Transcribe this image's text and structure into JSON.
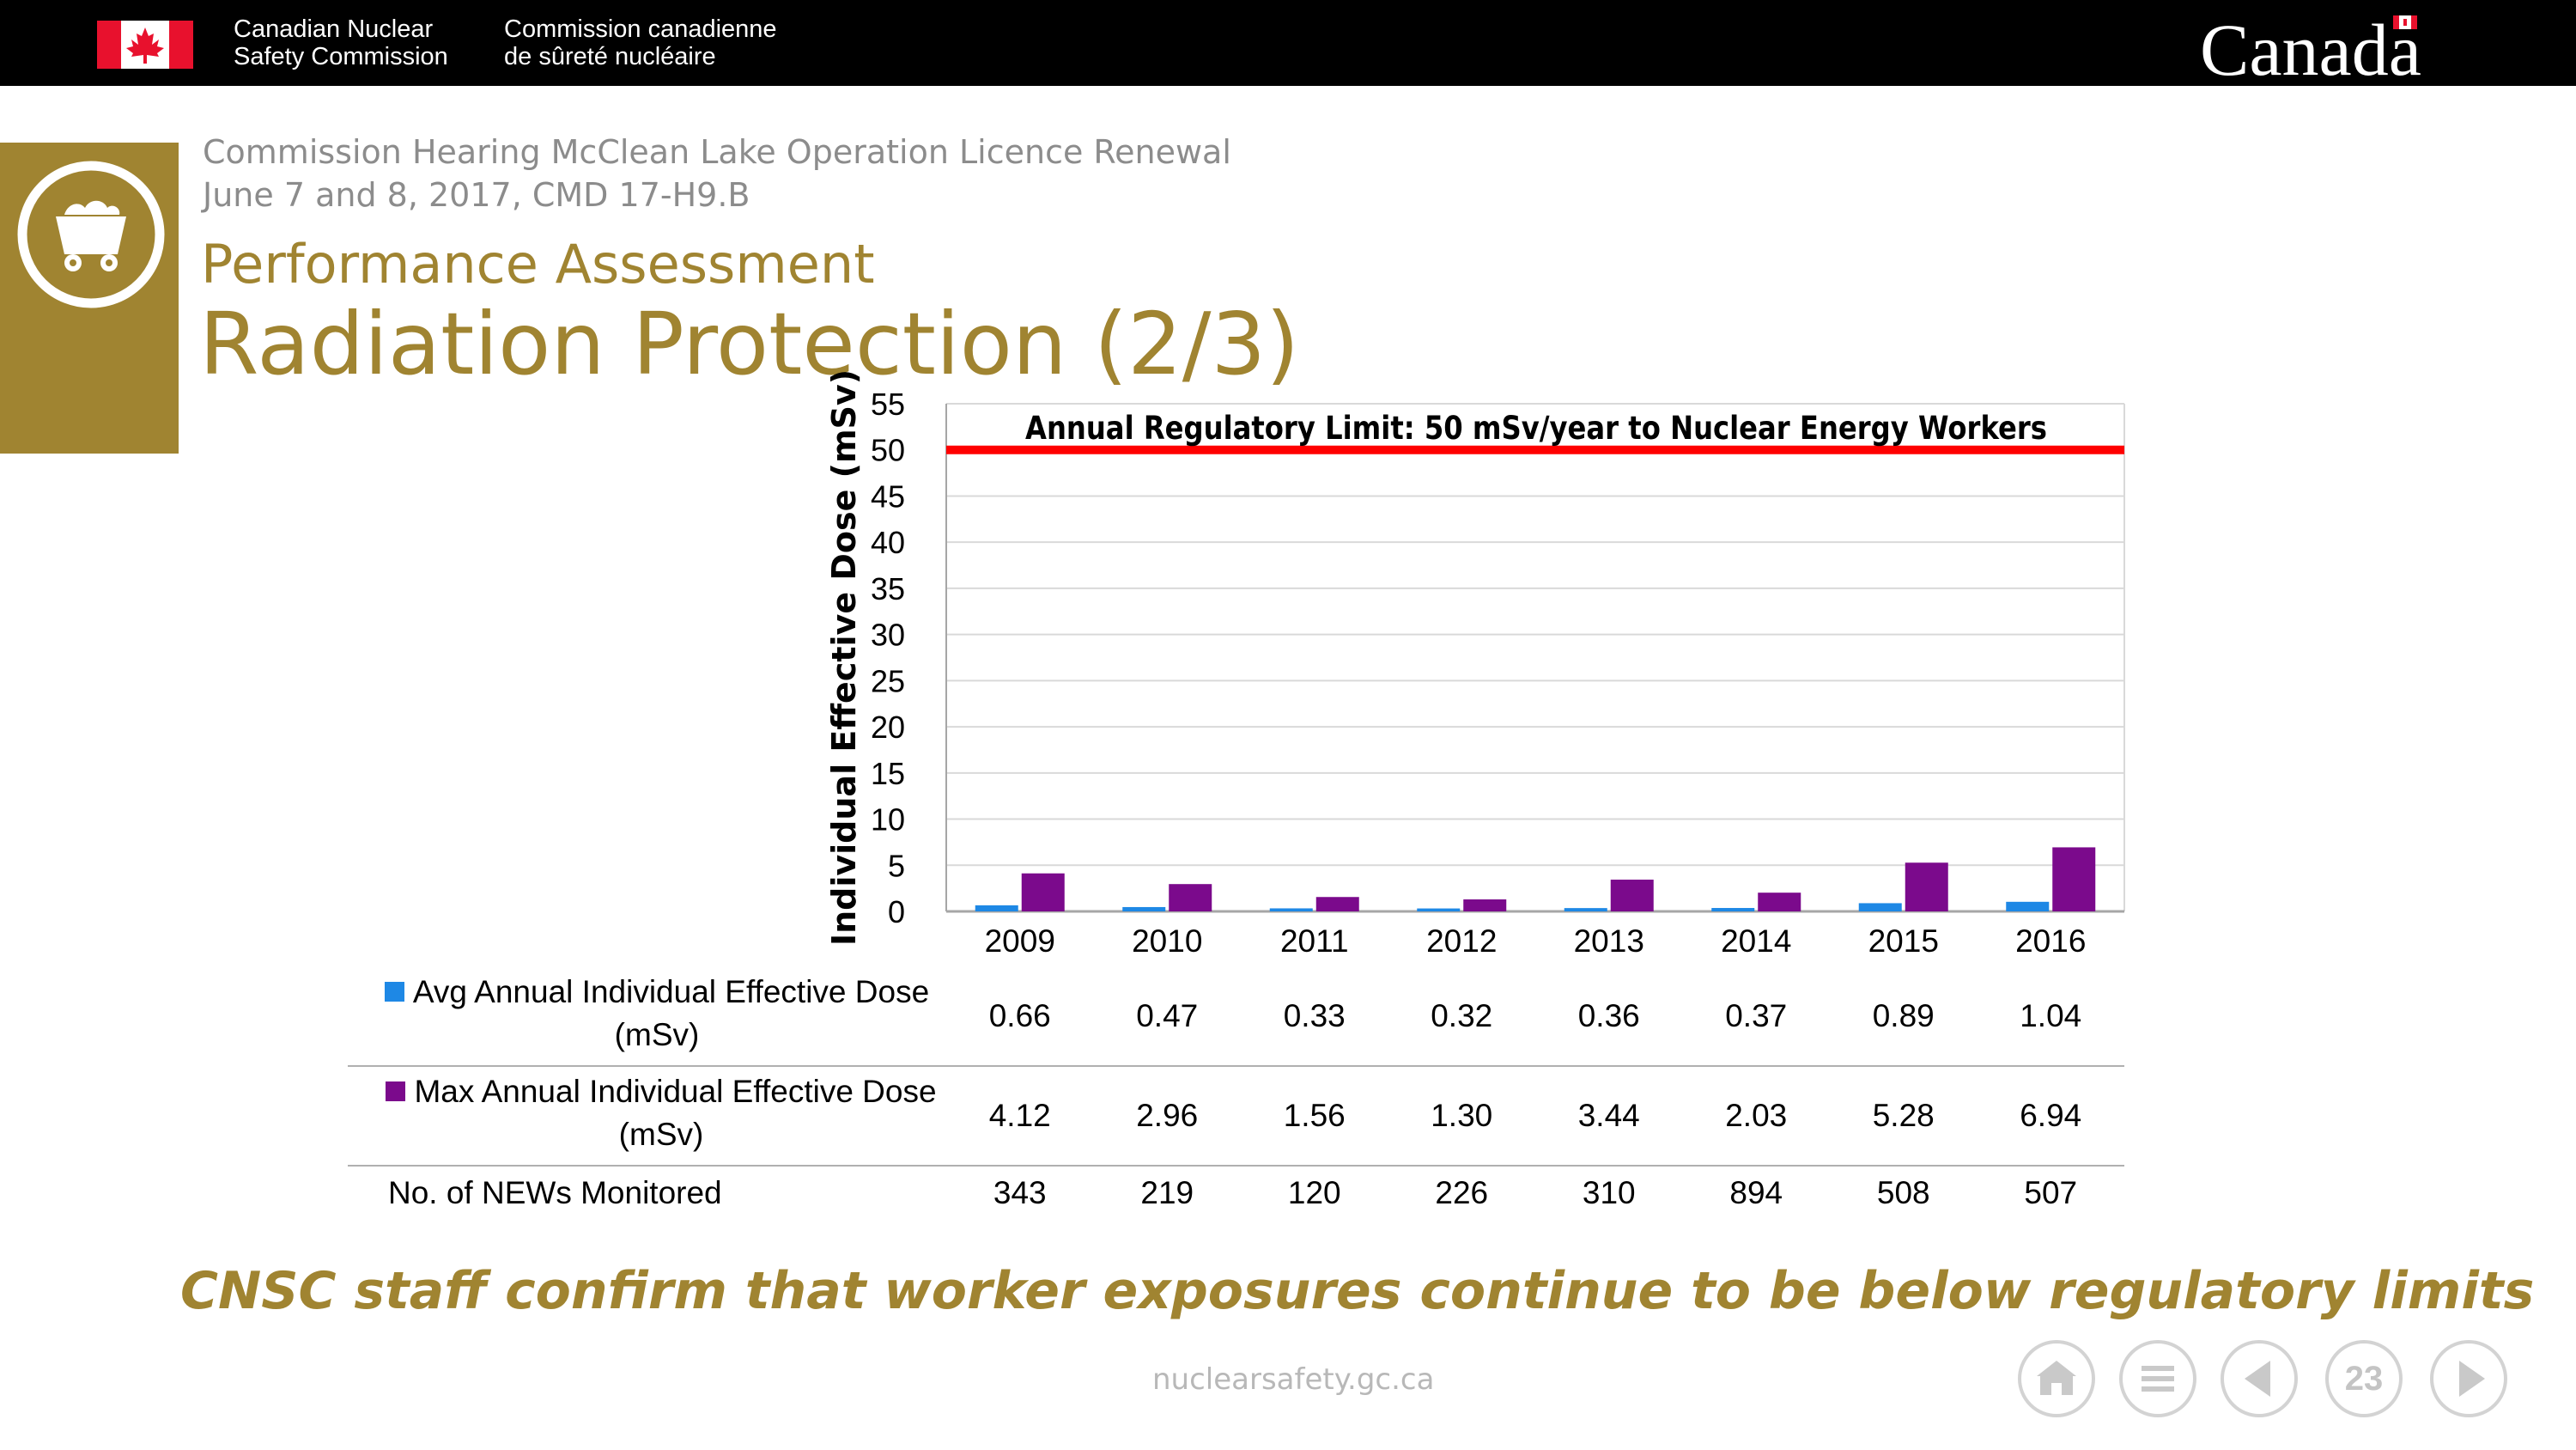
{
  "header": {
    "agency_en_line1": "Canadian Nuclear",
    "agency_en_line2": "Safety Commission",
    "agency_fr_line1": "Commission canadienne",
    "agency_fr_line2": "de sûreté nucléaire",
    "wordmark": "Canada"
  },
  "slide": {
    "hearing_line1": "Commission Hearing McClean Lake Operation Licence Renewal",
    "hearing_line2": "June 7 and 8, 2017, CMD 17-H9.B",
    "subtitle": "Performance Assessment",
    "title": "Radiation Protection (2/3)",
    "conclusion": "CNSC staff confirm that worker exposures continue to be below regulatory limits",
    "footer_url": "nuclearsafety.gc.ca",
    "page_number": "23"
  },
  "colors": {
    "gold": "#a08431",
    "avg_series": "#1e88e5",
    "max_series": "#7b0a8c",
    "limit_line": "#ff0000"
  },
  "nav_icons": [
    "home-icon",
    "menu-icon",
    "previous-icon",
    "page-number",
    "next-icon"
  ],
  "chart_data": {
    "type": "bar",
    "categories": [
      "2009",
      "2010",
      "2011",
      "2012",
      "2013",
      "2014",
      "2015",
      "2016"
    ],
    "ylabel": "Individual Effective Dose (mSv)",
    "ylim": [
      0,
      55
    ],
    "yticks": [
      "0",
      "5",
      "10",
      "15",
      "20",
      "25",
      "30",
      "35",
      "40",
      "45",
      "50",
      "55"
    ],
    "grid": true,
    "limit": {
      "value": 50,
      "label": "Annual Regulatory Limit: 50 mSv/year to Nuclear Energy Workers"
    },
    "series": [
      {
        "name": "Avg Annual Individual Effective Dose (mSv)",
        "name_line1": "Avg Annual Individual Effective Dose",
        "name_line2": "(mSv)",
        "values": [
          0.66,
          0.47,
          0.33,
          0.32,
          0.36,
          0.37,
          0.89,
          1.04
        ],
        "labels": [
          "0.66",
          "0.47",
          "0.33",
          "0.32",
          "0.36",
          "0.37",
          "0.89",
          "1.04"
        ],
        "color": "#1e88e5"
      },
      {
        "name": "Max Annual Individual Effective Dose (mSv)",
        "name_line1": "Max Annual Individual Effective Dose",
        "name_line2": "(mSv)",
        "values": [
          4.12,
          2.96,
          1.56,
          1.3,
          3.44,
          2.03,
          5.28,
          6.94
        ],
        "labels": [
          "4.12",
          "2.96",
          "1.56",
          "1.30",
          "3.44",
          "2.03",
          "5.28",
          "6.94"
        ],
        "color": "#7b0a8c"
      }
    ],
    "table_row": {
      "name": "No. of NEWs Monitored",
      "values": [
        "343",
        "219",
        "120",
        "226",
        "310",
        "894",
        "508",
        "507"
      ]
    }
  }
}
